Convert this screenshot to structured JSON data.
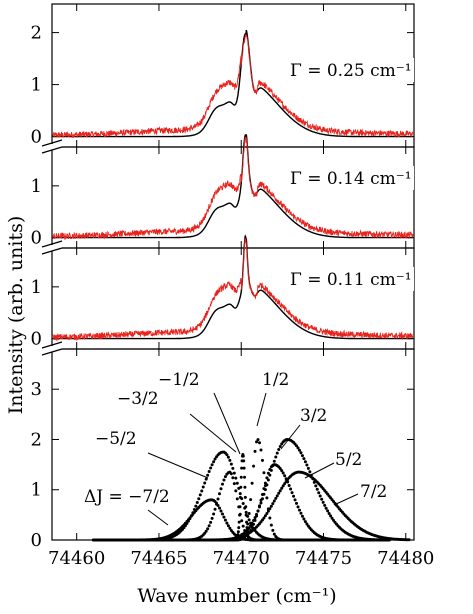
{
  "chart_data": {
    "type": "line",
    "xlabel": "Wave number (cm⁻¹)",
    "ylabel": "Intensity (arb. units)",
    "xlim": [
      74458.5,
      74480.5
    ],
    "x_ticks": [
      74460,
      74465,
      74470,
      74475,
      74480
    ],
    "panels": [
      {
        "name": "gamma-0.25",
        "annotation": "Γ = 0.25 cm⁻¹",
        "ylim": [
          -0.2,
          2.55
        ],
        "y_ticks": [
          0,
          1,
          2
        ],
        "peak_scale": 1.0,
        "sharp_width": 0.32,
        "experimental_color": "#e8221c",
        "model_color": "#000000"
      },
      {
        "name": "gamma-0.14",
        "annotation": "Γ = 0.14 cm⁻¹",
        "ylim": [
          -0.2,
          1.75
        ],
        "y_ticks": [
          0,
          1
        ],
        "peak_scale": 1.0,
        "sharp_width": 0.2,
        "experimental_color": "#e8221c",
        "model_color": "#000000"
      },
      {
        "name": "gamma-0.11",
        "annotation": "Γ = 0.11 cm⁻¹",
        "ylim": [
          -0.2,
          1.75
        ],
        "y_ticks": [
          0,
          1
        ],
        "peak_scale": 1.0,
        "sharp_width": 0.15,
        "experimental_color": "#e8221c",
        "model_color": "#000000"
      },
      {
        "name": "delta-j-components",
        "ylim": [
          0,
          3.8
        ],
        "y_ticks": [
          0,
          1,
          2,
          3
        ],
        "components": [
          {
            "label": "ΔJ = −7/2",
            "center": 74468.2,
            "amplitude": 0.8,
            "width_left": 1.7,
            "width_right": 1.0
          },
          {
            "label": "−5/2",
            "center": 74469.3,
            "amplitude": 1.35,
            "width_left": 1.0,
            "width_right": 0.65
          },
          {
            "label": "−3/2",
            "center": 74468.9,
            "amplitude": 1.75,
            "width_left": 1.7,
            "width_right": 1.3
          },
          {
            "label": "−1/2",
            "center": 74470.1,
            "amplitude": 1.7,
            "width_left": 0.18,
            "width_right": 0.18
          },
          {
            "label": "1/2",
            "center": 74471.0,
            "amplitude": 2.0,
            "width_left": 0.45,
            "width_right": 0.6
          },
          {
            "label": "3/2",
            "center": 74472.8,
            "amplitude": 2.0,
            "width_left": 1.6,
            "width_right": 2.2
          },
          {
            "label": "5/2",
            "center": 74472.0,
            "amplitude": 1.5,
            "width_left": 1.0,
            "width_right": 1.6
          },
          {
            "label": "7/2",
            "center": 74473.5,
            "amplitude": 1.35,
            "width_left": 2.0,
            "width_right": 2.8
          }
        ]
      }
    ]
  }
}
